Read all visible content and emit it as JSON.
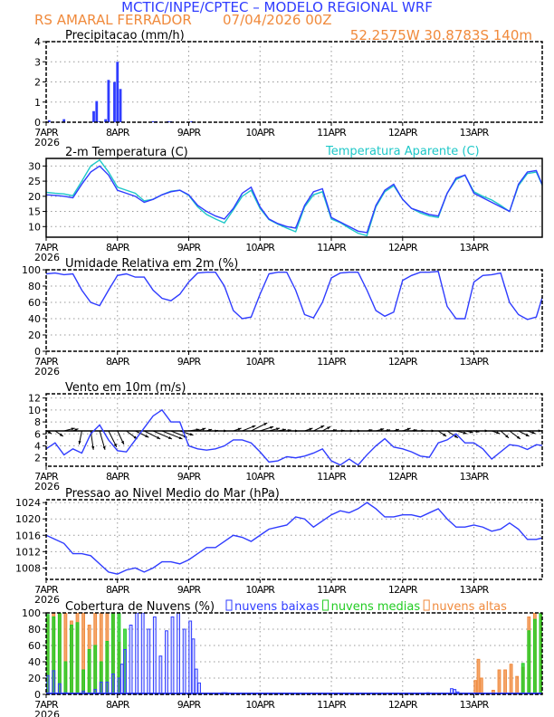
{
  "header": {
    "title": "MCTIC/INPE/CPTEC – MODELO REGIONAL WRF",
    "station": "RS AMARAL FERRADOR",
    "run": "07/04/2026 00Z",
    "location": "52.2575W 30.8783S 140m",
    "title_color": "#2f3cff",
    "info_color": "#f08a3c"
  },
  "x_axis": {
    "tick_labels": [
      "7APR",
      "8APR",
      "9APR",
      "10APR",
      "11APR",
      "12APR",
      "13APR"
    ],
    "year_label": "2026",
    "unit": "hours since 7APR 00Z",
    "range": [
      0,
      167
    ]
  },
  "chart_data": [
    {
      "id": "precip",
      "type": "bar",
      "title": "Precipitacao (mm/h)",
      "ylim": [
        0,
        4
      ],
      "yticks": [
        "0",
        "1",
        "2",
        "3",
        "4"
      ],
      "grid": true,
      "color": "#2f3cff",
      "x": [
        1,
        6,
        16,
        17,
        18,
        20,
        21,
        23,
        24,
        25,
        36,
        37,
        41,
        42,
        49
      ],
      "values": [
        0.1,
        0.15,
        0.55,
        1.05,
        0.05,
        0.15,
        2.1,
        2.0,
        3.0,
        1.65,
        0.05,
        0.05,
        0.05,
        0.05,
        0.05
      ]
    },
    {
      "id": "temp",
      "type": "line",
      "title": "2-m Temperatura (C)",
      "ylim": [
        6.5,
        32.5
      ],
      "yticks": [
        "10",
        "15",
        "20",
        "25",
        "30"
      ],
      "grid": true,
      "x_step": 3,
      "series": [
        {
          "name": "",
          "color": "#2f3cff",
          "values": [
            20.5,
            20.3,
            20,
            19.5,
            24,
            28,
            30,
            27,
            22,
            21,
            20,
            18,
            19,
            20.5,
            21.5,
            22,
            20.5,
            17,
            15,
            13.5,
            12.5,
            16,
            21,
            23,
            16.5,
            12.5,
            11,
            10,
            9.5,
            17,
            21.5,
            22.5,
            13,
            11.5,
            10,
            8.5,
            8,
            17,
            22,
            24,
            19,
            16,
            15,
            14,
            13.5,
            21,
            26,
            27,
            21,
            19.5,
            18,
            16.5,
            15,
            24,
            28,
            28.5,
            21.5
          ]
        },
        {
          "name": "Temperatura Aparente (C)",
          "color": "#1ec8c8",
          "values": [
            21.3,
            21,
            20.8,
            20.2,
            25,
            30,
            32,
            28,
            23,
            22,
            21,
            18.5,
            19,
            20.5,
            21.7,
            22,
            20.3,
            16.5,
            14,
            12.5,
            11.2,
            15.5,
            20,
            22,
            16,
            12.3,
            10.8,
            9.5,
            8.3,
            16.5,
            20.5,
            21.5,
            12.5,
            11.3,
            9.5,
            7.8,
            7,
            16.5,
            21.5,
            23.5,
            19,
            16,
            14.5,
            13.5,
            13,
            21,
            25.5,
            27,
            21.5,
            20,
            18.8,
            17,
            15,
            23.5,
            27.5,
            28,
            21.5
          ]
        }
      ]
    },
    {
      "id": "rh",
      "type": "line",
      "title": "Umidade Relativa em 2m (%)",
      "ylim": [
        0,
        100
      ],
      "yticks": [
        "0",
        "20",
        "40",
        "60",
        "80",
        "100"
      ],
      "grid": true,
      "x_step": 3,
      "series": [
        {
          "name": "",
          "color": "#2f3cff",
          "values": [
            95,
            96,
            94,
            95,
            75,
            60,
            56,
            75,
            93,
            95,
            91,
            91,
            75,
            65,
            62,
            70,
            85,
            96,
            97,
            97,
            80,
            50,
            40,
            42,
            70,
            95,
            97,
            97,
            75,
            45,
            41,
            60,
            90,
            96,
            97,
            97,
            75,
            50,
            43,
            48,
            87,
            93,
            97,
            97,
            98,
            55,
            40,
            40,
            85,
            93,
            94,
            96,
            60,
            45,
            39,
            42,
            78
          ]
        }
      ]
    },
    {
      "id": "wind",
      "type": "line",
      "title": "Vento em 10m (m/s)",
      "ylim": [
        0.6,
        12.7
      ],
      "yticks": [
        "2",
        "4",
        "6",
        "8",
        "10",
        "12"
      ],
      "grid": true,
      "x_step": 3,
      "series": [
        {
          "name": "",
          "color": "#2f3cff",
          "values": [
            3.5,
            4.5,
            2.5,
            3.5,
            2.8,
            6,
            7.5,
            5,
            3.2,
            3,
            5,
            7,
            9,
            10,
            8,
            8,
            4,
            3.5,
            3.3,
            3.5,
            4,
            5,
            5,
            4.5,
            3,
            1.3,
            1.5,
            2.2,
            2,
            2.3,
            2.8,
            3.5,
            1.5,
            0.8,
            1.8,
            0.8,
            2.5,
            4,
            5.2,
            3.8,
            3.5,
            3,
            2.3,
            2.1,
            4.5,
            5,
            6,
            4.5,
            4.5,
            3.5,
            1.8,
            3,
            4.2,
            4,
            3.4,
            4.2,
            4
          ]
        }
      ],
      "vectors": {
        "baseline": 6.5,
        "color": "#000000",
        "u": [
          1,
          1.5,
          2,
          1,
          -0.5,
          0.5,
          1,
          1.5,
          1.2,
          2,
          2.5,
          3,
          3.5,
          3.8,
          3,
          2.5,
          2,
          1.5,
          1,
          0.5,
          0.5,
          1.5,
          2.5,
          3,
          2.5,
          2,
          1.5,
          0.8,
          0.5,
          1.5,
          2,
          1.5,
          1,
          0.8,
          0.8,
          0.5,
          1,
          1.5,
          1,
          1,
          1.5,
          1,
          0.8,
          1,
          1.5,
          2,
          2,
          1.5,
          1,
          1,
          1.5,
          1.5,
          2,
          2,
          1.5,
          1,
          0.8
        ],
        "v": [
          -0.5,
          -1,
          0.5,
          0.4,
          -2.5,
          -3.5,
          -3.5,
          -3,
          -2.5,
          -1.5,
          -1.2,
          -1.5,
          -1.5,
          -1.5,
          -1.2,
          -0.8,
          0.3,
          0.5,
          0.3,
          0.1,
          0,
          0.5,
          1,
          1.5,
          0.8,
          0.5,
          0.3,
          0.2,
          0,
          0.5,
          1,
          0.8,
          0.2,
          0.1,
          0,
          0,
          0.2,
          0.4,
          0.2,
          0.3,
          0.5,
          0.2,
          0.1,
          0,
          -1,
          -1.3,
          -0.5,
          -0.3,
          -0.2,
          0,
          -0.5,
          -1.3,
          -1.5,
          -1,
          -0.5,
          0,
          0
        ]
      }
    },
    {
      "id": "pressure",
      "type": "line",
      "title": "Pressao ao Nivel Medio do Mar (hPa)",
      "ylim": [
        1005.2,
        1024.7
      ],
      "yticks": [
        "1008",
        "1012",
        "1016",
        "1020",
        "1024"
      ],
      "grid": true,
      "x_step": 3,
      "series": [
        {
          "name": "",
          "color": "#2f3cff",
          "values": [
            1016,
            1015,
            1014,
            1011.5,
            1011.5,
            1011,
            1009,
            1007,
            1006.5,
            1007.5,
            1008,
            1007,
            1008,
            1009.5,
            1009.5,
            1009,
            1010,
            1011.5,
            1013,
            1013,
            1014.5,
            1016,
            1015.5,
            1014.5,
            1016,
            1017.5,
            1018,
            1018.5,
            1020.5,
            1020,
            1018,
            1019.5,
            1021,
            1022,
            1021.5,
            1022.5,
            1024,
            1022.5,
            1020.5,
            1020.5,
            1021,
            1021,
            1020.5,
            1021.5,
            1022.5,
            1020,
            1018,
            1018,
            1018.5,
            1018,
            1017,
            1017.5,
            1019,
            1017.5,
            1015,
            1015,
            1015.5
          ]
        }
      ]
    },
    {
      "id": "clouds",
      "type": "bar",
      "title": "Cobertura de Nuvens (%)",
      "ylim": [
        0,
        100
      ],
      "yticks": [
        "0",
        "20",
        "40",
        "60",
        "80",
        "100"
      ],
      "grid": true,
      "legend_placement": "top",
      "series": [
        {
          "name": "nuvens altas",
          "color": "#f08a3c",
          "x": [
            0,
            2,
            4,
            6,
            8,
            10,
            12,
            14,
            16,
            18,
            20,
            22,
            24,
            144,
            145,
            146,
            150,
            152,
            154,
            156,
            158,
            160,
            162,
            164,
            166
          ],
          "values": [
            95,
            100,
            100,
            100,
            90,
            100,
            100,
            85,
            100,
            100,
            100,
            100,
            64,
            17,
            43,
            20,
            5,
            30,
            30,
            37,
            22,
            33,
            95,
            100,
            100
          ]
        },
        {
          "name": "nuvens medias",
          "color": "#22cc22",
          "x": [
            0,
            2,
            4,
            6,
            8,
            10,
            12,
            14,
            16,
            18,
            20,
            22,
            24,
            26,
            160,
            162,
            164,
            166
          ],
          "values": [
            98,
            95,
            100,
            40,
            85,
            88,
            30,
            55,
            60,
            40,
            65,
            100,
            100,
            80,
            38,
            78,
            92,
            100
          ]
        },
        {
          "name": "nuvens baixas",
          "color": "#2f3cff",
          "x": [
            0,
            2,
            4,
            6,
            8,
            12,
            16,
            18,
            20,
            22,
            24,
            25,
            26,
            28,
            30,
            32,
            34,
            36,
            38,
            40,
            42,
            44,
            46,
            48,
            49,
            50,
            51,
            59,
            60,
            126,
            128,
            136,
            137,
            138
          ],
          "values": [
            23,
            29,
            13,
            2,
            0,
            4,
            6,
            15,
            15,
            25,
            20,
            37,
            55,
            85,
            100,
            100,
            80,
            95,
            47,
            78,
            95,
            100,
            80,
            90,
            68,
            31,
            14,
            2,
            2,
            1,
            2,
            7,
            6,
            3
          ]
        }
      ]
    }
  ]
}
